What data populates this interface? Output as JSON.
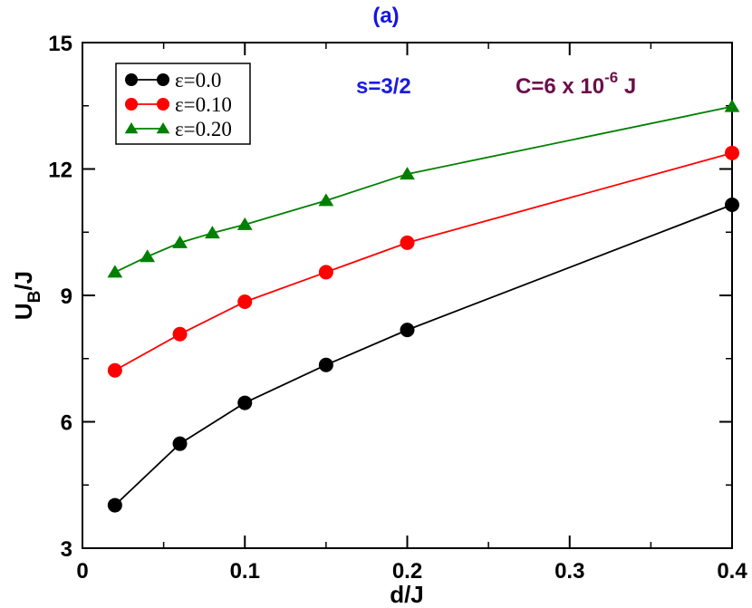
{
  "chart_data": {
    "type": "line",
    "panel_label": "(a)",
    "xlabel": "d/J",
    "ylabel": {
      "main": "U",
      "sub": "B",
      "suffix": "/J"
    },
    "xlim": [
      0,
      0.4
    ],
    "ylim": [
      3,
      15
    ],
    "xticks": [
      0,
      0.1,
      0.2,
      0.3,
      0.4
    ],
    "xtick_labels": [
      "0",
      "0.1",
      "0.2",
      "0.3",
      "0.4"
    ],
    "yticks": [
      3,
      6,
      9,
      12,
      15
    ],
    "ytick_labels": [
      "3",
      "6",
      "9",
      "12",
      "15"
    ],
    "legend_position": "top-left",
    "annotations": {
      "spin": "s=3/2",
      "c_prefix": "C=6 x 10",
      "c_exponent": "-6",
      "c_suffix": " J"
    },
    "series": [
      {
        "name": "ε=0.0",
        "color": "#000000",
        "marker": "circle",
        "x": [
          0.02,
          0.06,
          0.1,
          0.15,
          0.2,
          0.4
        ],
        "y": [
          4.02,
          5.48,
          6.45,
          7.35,
          8.18,
          11.15
        ]
      },
      {
        "name": "ε=0.10",
        "color": "#ff0000",
        "marker": "circle",
        "x": [
          0.02,
          0.06,
          0.1,
          0.15,
          0.2,
          0.4
        ],
        "y": [
          7.22,
          8.08,
          8.85,
          9.55,
          10.25,
          12.38
        ]
      },
      {
        "name": "ε=0.20",
        "color": "#008000",
        "marker": "triangle",
        "x": [
          0.02,
          0.04,
          0.06,
          0.08,
          0.1,
          0.15,
          0.2,
          0.4
        ],
        "y": [
          9.55,
          9.92,
          10.25,
          10.48,
          10.68,
          11.25,
          11.88,
          13.48
        ]
      }
    ]
  }
}
